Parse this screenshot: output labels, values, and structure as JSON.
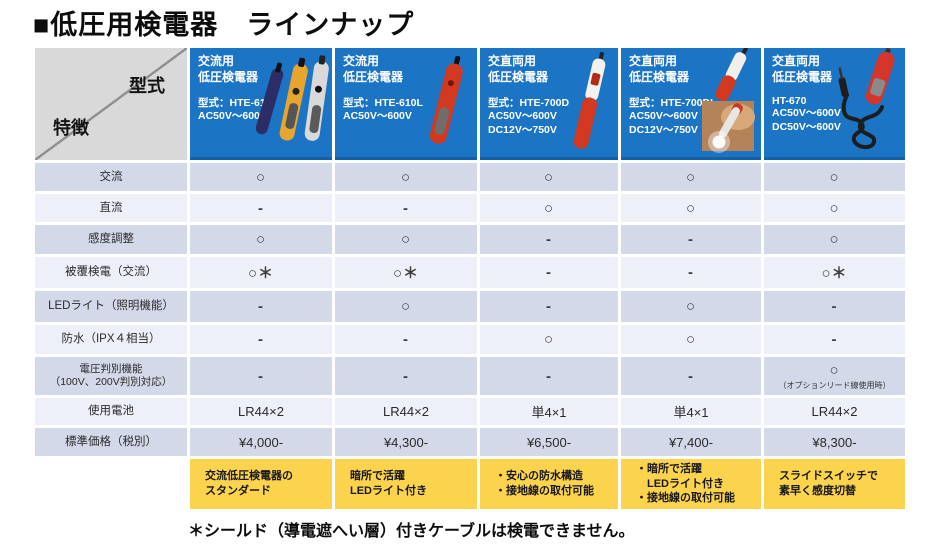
{
  "page_title": "■低圧用検電器　ラインナップ",
  "corner": {
    "top_right": "型式",
    "bottom_left": "特徴"
  },
  "products": [
    {
      "type_label": "交流用\n低圧検電器",
      "model": "型式：HTE-610",
      "voltages": "AC50V～600V",
      "image": "three-pen-testers"
    },
    {
      "type_label": "交流用\n低圧検電器",
      "model": "型式：HTE-610L",
      "voltages": "AC50V～600V",
      "image": "red-pen-tester"
    },
    {
      "type_label": "交直両用\n低圧検電器",
      "model": "型式：HTE-700D",
      "voltages": "AC50V～600V\nDC12V～750V",
      "image": "white-red-pen-tester"
    },
    {
      "type_label": "交直両用\n低圧検電器",
      "model": "型式：HTE-700DL",
      "voltages": "AC50V～600V\nDC12V～750V",
      "image": "red-pen-with-led-photo"
    },
    {
      "type_label": "交直両用\n低圧検電器",
      "model": "HT-670",
      "voltages": "AC50V～600V\nDC50V～600V",
      "image": "red-tester-with-cable"
    }
  ],
  "rows": [
    {
      "label": "交流",
      "values": [
        "○",
        "○",
        "○",
        "○",
        "○"
      ]
    },
    {
      "label": "直流",
      "values": [
        "-",
        "-",
        "○",
        "○",
        "○"
      ]
    },
    {
      "label": "感度調整",
      "values": [
        "○",
        "○",
        "-",
        "-",
        "○"
      ]
    },
    {
      "label": "被覆検電（交流）",
      "values": [
        "○＊",
        "○＊",
        "-",
        "-",
        "○＊"
      ]
    },
    {
      "label": "LEDライト（照明機能）",
      "values": [
        "-",
        "○",
        "-",
        "○",
        "-"
      ]
    },
    {
      "label": "防水（IPX４相当）",
      "values": [
        "-",
        "-",
        "○",
        "○",
        "-"
      ]
    },
    {
      "label": "電圧判別機能\n（100V、200V判別対応）",
      "values": [
        "-",
        "-",
        "-",
        "-",
        "○"
      ],
      "notes": {
        "4": "（オプションリード線使用時）"
      }
    },
    {
      "label": "使用電池",
      "values": [
        "LR44×2",
        "LR44×2",
        "単4×1",
        "単4×1",
        "LR44×2"
      ]
    },
    {
      "label": "標準価格（税別）",
      "values": [
        "¥4,000-",
        "¥4,300-",
        "¥6,500-",
        "¥7,400-",
        "¥8,300-"
      ]
    }
  ],
  "features": [
    "交流低圧検電器の\nスタンダード",
    "暗所で活躍\nLEDライト付き",
    "・安心の防水構造\n・接地線の取付可能",
    "・暗所で活躍\n　LEDライト付き\n・接地線の取付可能",
    "スライドスイッチで\n素早く感度切替"
  ],
  "footnote": "＊シールド（導電遮へい層）付きケーブルは検電できません。",
  "colors": {
    "header_blue": "#1b74c4",
    "header_blue_edge": "#1160a8",
    "row_dark": "#d4d9e9",
    "row_light": "#edf0f8",
    "feature_yellow": "#fbd34c",
    "corner_gray": "#d9d9d9"
  }
}
